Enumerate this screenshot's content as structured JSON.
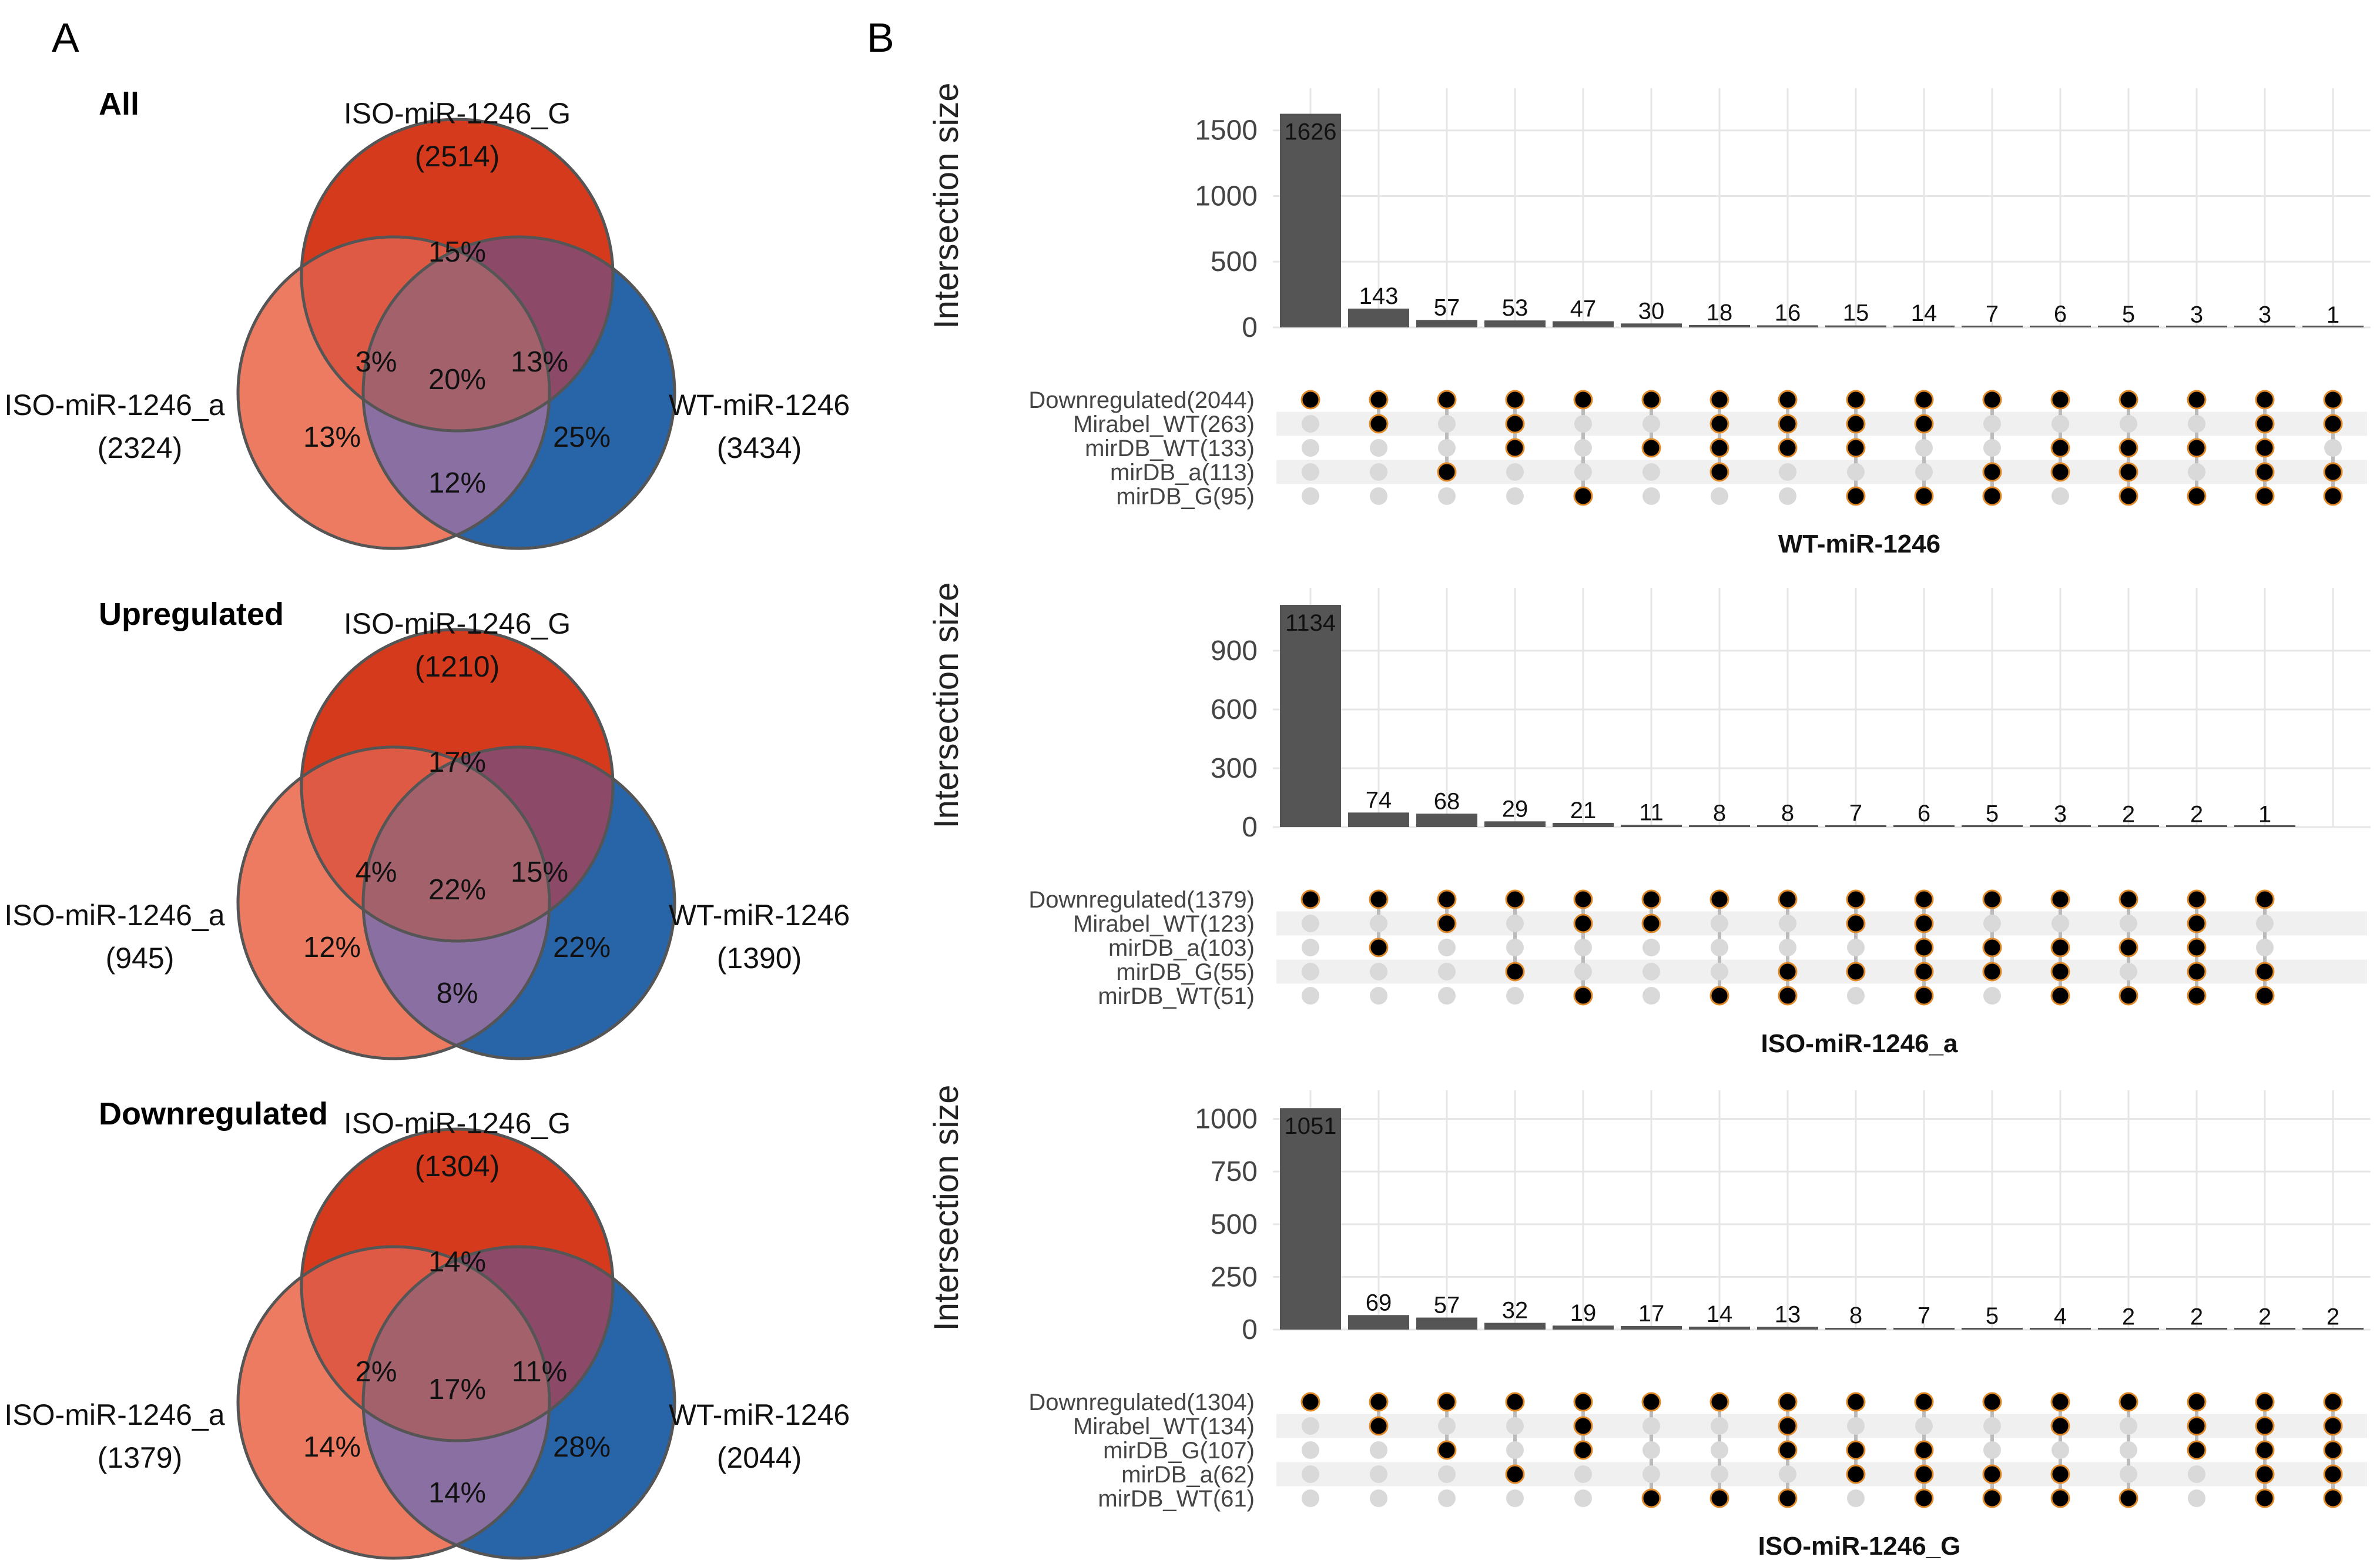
{
  "panels": {
    "left_letter": "A",
    "right_letter": "B"
  },
  "colors": {
    "iso_G": "#D63A1C",
    "iso_a": "#EC7B62",
    "wt": "#2864A8",
    "bar": "#555555",
    "dot_on": "#000000",
    "dot_on_outline": "#E08A2A",
    "dot_off": "#D9D9D9"
  },
  "venn": [
    {
      "heading": "All",
      "iso_G": {
        "name": "ISO-miR-1246_G",
        "count": "(2514)"
      },
      "iso_a": {
        "name": "ISO-miR-1246_a",
        "count": "(2324)"
      },
      "wt": {
        "name": "WT-miR-1246",
        "count": "(3434)"
      },
      "regions": {
        "G_only": "15%",
        "a_only": "13%",
        "wt_only": "25%",
        "G_a": "3%",
        "G_wt": "13%",
        "a_wt": "12%",
        "all": "20%"
      }
    },
    {
      "heading": "Upregulated",
      "iso_G": {
        "name": "ISO-miR-1246_G",
        "count": "(1210)"
      },
      "iso_a": {
        "name": "ISO-miR-1246_a",
        "count": "(945)"
      },
      "wt": {
        "name": "WT-miR-1246",
        "count": "(1390)"
      },
      "regions": {
        "G_only": "17%",
        "a_only": "12%",
        "wt_only": "22%",
        "G_a": "4%",
        "G_wt": "15%",
        "a_wt": "8%",
        "all": "22%"
      }
    },
    {
      "heading": "Downregulated",
      "iso_G": {
        "name": "ISO-miR-1246_G",
        "count": "(1304)"
      },
      "iso_a": {
        "name": "ISO-miR-1246_a",
        "count": "(1379)"
      },
      "wt": {
        "name": "WT-miR-1246",
        "count": "(2044)"
      },
      "regions": {
        "G_only": "14%",
        "a_only": "14%",
        "wt_only": "28%",
        "G_a": "2%",
        "G_wt": "11%",
        "a_wt": "14%",
        "all": "17%"
      }
    }
  ],
  "chart_data": [
    {
      "type": "upset",
      "title": "WT-miR-1246",
      "ylabel": "Intersection size",
      "ylim": [
        0,
        1700
      ],
      "yticks": [
        0,
        500,
        1000,
        1500
      ],
      "sets": [
        "Downregulated(2044)",
        "Mirabel_WT(263)",
        "mirDB_WT(133)",
        "mirDB_a(113)",
        "mirDB_G(95)"
      ],
      "values": [
        1626,
        143,
        57,
        53,
        47,
        30,
        18,
        16,
        15,
        14,
        7,
        6,
        5,
        3,
        3,
        1
      ],
      "membership": [
        [
          1,
          0,
          0,
          0,
          0
        ],
        [
          1,
          1,
          0,
          0,
          0
        ],
        [
          1,
          0,
          0,
          1,
          0
        ],
        [
          1,
          1,
          1,
          0,
          0
        ],
        [
          1,
          0,
          0,
          0,
          1
        ],
        [
          1,
          0,
          1,
          0,
          0
        ],
        [
          1,
          1,
          1,
          1,
          0
        ],
        [
          1,
          1,
          1,
          0,
          0
        ],
        [
          1,
          1,
          1,
          0,
          1
        ],
        [
          1,
          1,
          0,
          0,
          1
        ],
        [
          1,
          0,
          0,
          1,
          1
        ],
        [
          1,
          0,
          1,
          1,
          0
        ],
        [
          1,
          0,
          1,
          1,
          1
        ],
        [
          1,
          0,
          1,
          0,
          1
        ],
        [
          1,
          1,
          1,
          1,
          1
        ],
        [
          1,
          1,
          0,
          1,
          1
        ]
      ]
    },
    {
      "type": "upset",
      "title": "ISO-miR-1246_a",
      "ylabel": "Intersection size",
      "ylim": [
        0,
        1140
      ],
      "yticks": [
        0,
        300,
        600,
        900
      ],
      "sets": [
        "Downregulated(1379)",
        "Mirabel_WT(123)",
        "mirDB_a(103)",
        "mirDB_G(55)",
        "mirDB_WT(51)"
      ],
      "values": [
        1134,
        74,
        68,
        29,
        21,
        11,
        8,
        8,
        7,
        6,
        5,
        3,
        2,
        2,
        1
      ],
      "membership": [
        [
          1,
          0,
          0,
          0,
          0
        ],
        [
          1,
          0,
          1,
          0,
          0
        ],
        [
          1,
          1,
          0,
          0,
          0
        ],
        [
          1,
          0,
          0,
          1,
          0
        ],
        [
          1,
          1,
          0,
          0,
          1
        ],
        [
          1,
          1,
          0,
          0,
          0
        ],
        [
          1,
          0,
          0,
          0,
          1
        ],
        [
          1,
          0,
          0,
          1,
          1
        ],
        [
          1,
          1,
          0,
          1,
          0
        ],
        [
          1,
          1,
          1,
          1,
          1
        ],
        [
          1,
          0,
          1,
          1,
          0
        ],
        [
          1,
          0,
          1,
          1,
          1
        ],
        [
          1,
          0,
          1,
          0,
          1
        ],
        [
          1,
          1,
          1,
          1,
          1
        ],
        [
          1,
          0,
          0,
          1,
          1
        ]
      ]
    },
    {
      "type": "upset",
      "title": "ISO-miR-1246_G",
      "ylabel": "Intersection size",
      "ylim": [
        0,
        1060
      ],
      "yticks": [
        0,
        250,
        500,
        750,
        1000
      ],
      "sets": [
        "Downregulated(1304)",
        "Mirabel_WT(134)",
        "mirDB_G(107)",
        "mirDB_a(62)",
        "mirDB_WT(61)"
      ],
      "values": [
        1051,
        69,
        57,
        32,
        19,
        17,
        14,
        13,
        8,
        7,
        5,
        4,
        2,
        2,
        2,
        2
      ],
      "membership": [
        [
          1,
          0,
          0,
          0,
          0
        ],
        [
          1,
          1,
          0,
          0,
          0
        ],
        [
          1,
          0,
          1,
          0,
          0
        ],
        [
          1,
          0,
          0,
          1,
          0
        ],
        [
          1,
          1,
          1,
          0,
          0
        ],
        [
          1,
          0,
          0,
          0,
          1
        ],
        [
          1,
          0,
          0,
          0,
          1
        ],
        [
          1,
          1,
          1,
          0,
          1
        ],
        [
          1,
          0,
          1,
          1,
          0
        ],
        [
          1,
          0,
          1,
          1,
          1
        ],
        [
          1,
          0,
          0,
          1,
          1
        ],
        [
          1,
          1,
          0,
          1,
          1
        ],
        [
          1,
          0,
          0,
          0,
          1
        ],
        [
          1,
          1,
          1,
          0,
          0
        ],
        [
          1,
          1,
          1,
          1,
          1
        ],
        [
          1,
          1,
          1,
          1,
          1
        ]
      ]
    }
  ]
}
